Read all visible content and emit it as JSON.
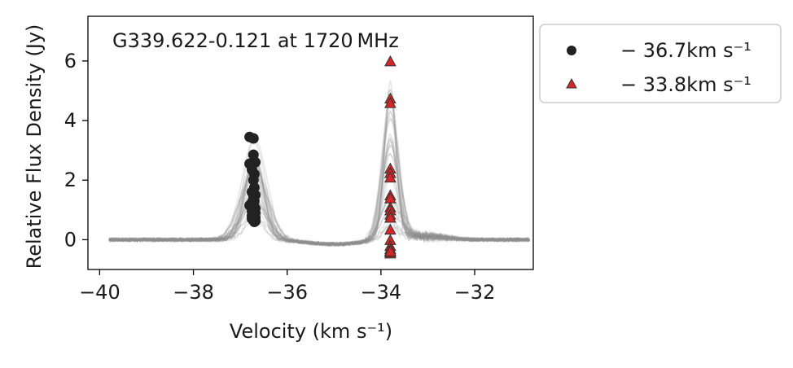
{
  "chart_data": {
    "type": "scatter",
    "annotation": "G339.622-0.121 at 1720 MHz",
    "xlabel": "Velocity (km s⁻¹)",
    "ylabel": "Relative Flux Density (Jy)",
    "xlim": [
      -40.25,
      -30.75
    ],
    "ylim": [
      -1.0,
      7.5
    ],
    "xticks": [
      -40,
      -38,
      -36,
      -34,
      -32
    ],
    "yticks": [
      0,
      2,
      4,
      6
    ],
    "xtick_labels": [
      "−40",
      "−38",
      "−36",
      "−34",
      "−32"
    ],
    "ytick_labels": [
      "0",
      "2",
      "4",
      "6"
    ],
    "grid": false,
    "legend_position": "outside-right",
    "series": [
      {
        "name": "− 36.7km s⁻¹",
        "marker": "circle",
        "color": "#222222",
        "x": [
          -36.8,
          -36.72,
          -36.72,
          -36.68,
          -36.8,
          -36.75,
          -36.7,
          -36.72,
          -36.7,
          -36.75,
          -36.68,
          -36.72,
          -36.7,
          -36.75,
          -36.72,
          -36.8,
          -36.7,
          -36.68,
          -36.72,
          -36.75,
          -36.7,
          -36.68,
          -36.72,
          -36.7,
          -36.75,
          -36.72,
          -36.68,
          -36.7,
          -36.75,
          -36.72,
          -36.7,
          -36.68,
          -36.72,
          -36.75,
          -36.7
        ],
        "y": [
          3.45,
          3.4,
          2.85,
          2.6,
          2.55,
          2.35,
          2.2,
          2.0,
          1.75,
          1.6,
          1.5,
          1.4,
          1.3,
          1.25,
          1.2,
          1.15,
          1.1,
          1.05,
          1.0,
          0.95,
          0.95,
          0.9,
          0.88,
          0.85,
          0.8,
          0.78,
          0.75,
          0.72,
          0.7,
          0.65,
          0.6,
          0.62,
          0.7,
          0.8,
          0.9
        ]
      },
      {
        "name": "− 33.8km s⁻¹",
        "marker": "triangle",
        "color": "#d62728",
        "x": [
          -33.8,
          -33.8,
          -33.8,
          -33.8,
          -33.8,
          -33.8,
          -33.8,
          -33.8,
          -33.8,
          -33.8,
          -33.8,
          -33.8,
          -33.8,
          -33.8,
          -33.8,
          -33.8,
          -33.8,
          -33.8,
          -33.8,
          -33.8
        ],
        "y": [
          6.0,
          4.75,
          4.6,
          2.4,
          2.25,
          2.1,
          1.5,
          1.4,
          1.1,
          1.0,
          0.85,
          0.75,
          0.35,
          0.0,
          -0.2,
          -0.35,
          -0.45,
          -0.4,
          -0.3,
          -0.38
        ]
      }
    ],
    "background_spectra": {
      "color": "#8c8c8c",
      "count": 30,
      "peak1_center": -36.7,
      "peak2_center": -33.8
    }
  }
}
